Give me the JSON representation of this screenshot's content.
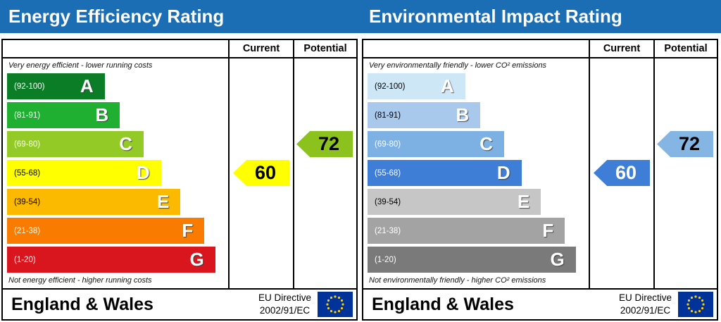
{
  "header": {
    "background": "#1c6eb4",
    "text_color": "#ffffff"
  },
  "flag": {
    "bg": "#003399",
    "stars": "#ffcc00"
  },
  "panels": [
    {
      "title": "Energy Efficiency Rating",
      "columns": {
        "current_label": "Current",
        "potential_label": "Potential"
      },
      "top_note": "Very energy efficient - lower running costs",
      "bottom_note": "Not energy efficient - higher running costs",
      "bands": [
        {
          "letter": "A",
          "range": "(92-100)",
          "color": "#0a7d26",
          "range_color": "#ffffff",
          "width_pct": 45
        },
        {
          "letter": "B",
          "range": "(81-91)",
          "color": "#20b031",
          "range_color": "#ffffff",
          "width_pct": 52
        },
        {
          "letter": "C",
          "range": "(69-80)",
          "color": "#94ca26",
          "range_color": "#ffffff",
          "width_pct": 63
        },
        {
          "letter": "D",
          "range": "(55-68)",
          "color": "#ffff00",
          "range_color": "#000000",
          "width_pct": 71
        },
        {
          "letter": "E",
          "range": "(39-54)",
          "color": "#fbb900",
          "range_color": "#000000",
          "width_pct": 80
        },
        {
          "letter": "F",
          "range": "(21-38)",
          "color": "#f97c00",
          "range_color": "#ffffff",
          "width_pct": 91
        },
        {
          "letter": "G",
          "range": "(1-20)",
          "color": "#d9151e",
          "range_color": "#ffffff",
          "width_pct": 96
        }
      ],
      "current": {
        "value": "60",
        "band": "D",
        "band_index": 3,
        "color": "#ffff00",
        "text_color": "#000000"
      },
      "potential": {
        "value": "72",
        "band": "C",
        "band_index": 2,
        "color": "#8cc21d",
        "text_color": "#000000"
      },
      "footer": {
        "region": "England & Wales",
        "directive_line1": "EU Directive",
        "directive_line2": "2002/91/EC"
      }
    },
    {
      "title": "Environmental Impact Rating",
      "columns": {
        "current_label": "Current",
        "potential_label": "Potential"
      },
      "top_note": "Very environmentally friendly - lower CO² emissions",
      "bottom_note": "Not environmentally friendly - higher CO² emissions",
      "bands": [
        {
          "letter": "A",
          "range": "(92-100)",
          "color": "#cde7f7",
          "range_color": "#000000",
          "width_pct": 45
        },
        {
          "letter": "B",
          "range": "(81-91)",
          "color": "#a9c9ec",
          "range_color": "#000000",
          "width_pct": 52
        },
        {
          "letter": "C",
          "range": "(69-80)",
          "color": "#7db1e4",
          "range_color": "#ffffff",
          "width_pct": 63
        },
        {
          "letter": "D",
          "range": "(55-68)",
          "color": "#3f7ed6",
          "range_color": "#ffffff",
          "width_pct": 71
        },
        {
          "letter": "E",
          "range": "(39-54)",
          "color": "#c6c6c6",
          "range_color": "#000000",
          "width_pct": 80
        },
        {
          "letter": "F",
          "range": "(21-38)",
          "color": "#a3a3a3",
          "range_color": "#ffffff",
          "width_pct": 91
        },
        {
          "letter": "G",
          "range": "(1-20)",
          "color": "#7a7a7a",
          "range_color": "#ffffff",
          "width_pct": 96
        }
      ],
      "current": {
        "value": "60",
        "band": "D",
        "band_index": 3,
        "color": "#3f7ed6",
        "text_color": "#ffffff"
      },
      "potential": {
        "value": "72",
        "band": "C",
        "band_index": 2,
        "color": "#85b5e2",
        "text_color": "#000000"
      },
      "footer": {
        "region": "England & Wales",
        "directive_line1": "EU Directive",
        "directive_line2": "2002/91/EC"
      }
    }
  ],
  "chart_data": [
    {
      "type": "bar",
      "title": "Energy Efficiency Rating",
      "categories": [
        "A (92-100)",
        "B (81-91)",
        "C (69-80)",
        "D (55-68)",
        "E (39-54)",
        "F (21-38)",
        "G (1-20)"
      ],
      "values": [
        45,
        52,
        63,
        71,
        80,
        91,
        96
      ],
      "ylabel": "relative band bar width (%)",
      "annotations": {
        "current": 60,
        "current_band": "D",
        "potential": 72,
        "potential_band": "C"
      },
      "notes": [
        "Very energy efficient - lower running costs",
        "Not energy efficient - higher running costs"
      ]
    },
    {
      "type": "bar",
      "title": "Environmental Impact Rating",
      "categories": [
        "A (92-100)",
        "B (81-91)",
        "C (69-80)",
        "D (55-68)",
        "E (39-54)",
        "F (21-38)",
        "G (1-20)"
      ],
      "values": [
        45,
        52,
        63,
        71,
        80,
        91,
        96
      ],
      "ylabel": "relative band bar width (%)",
      "annotations": {
        "current": 60,
        "current_band": "D",
        "potential": 72,
        "potential_band": "C"
      },
      "notes": [
        "Very environmentally friendly - lower CO² emissions",
        "Not environmentally friendly - higher CO² emissions"
      ]
    }
  ]
}
